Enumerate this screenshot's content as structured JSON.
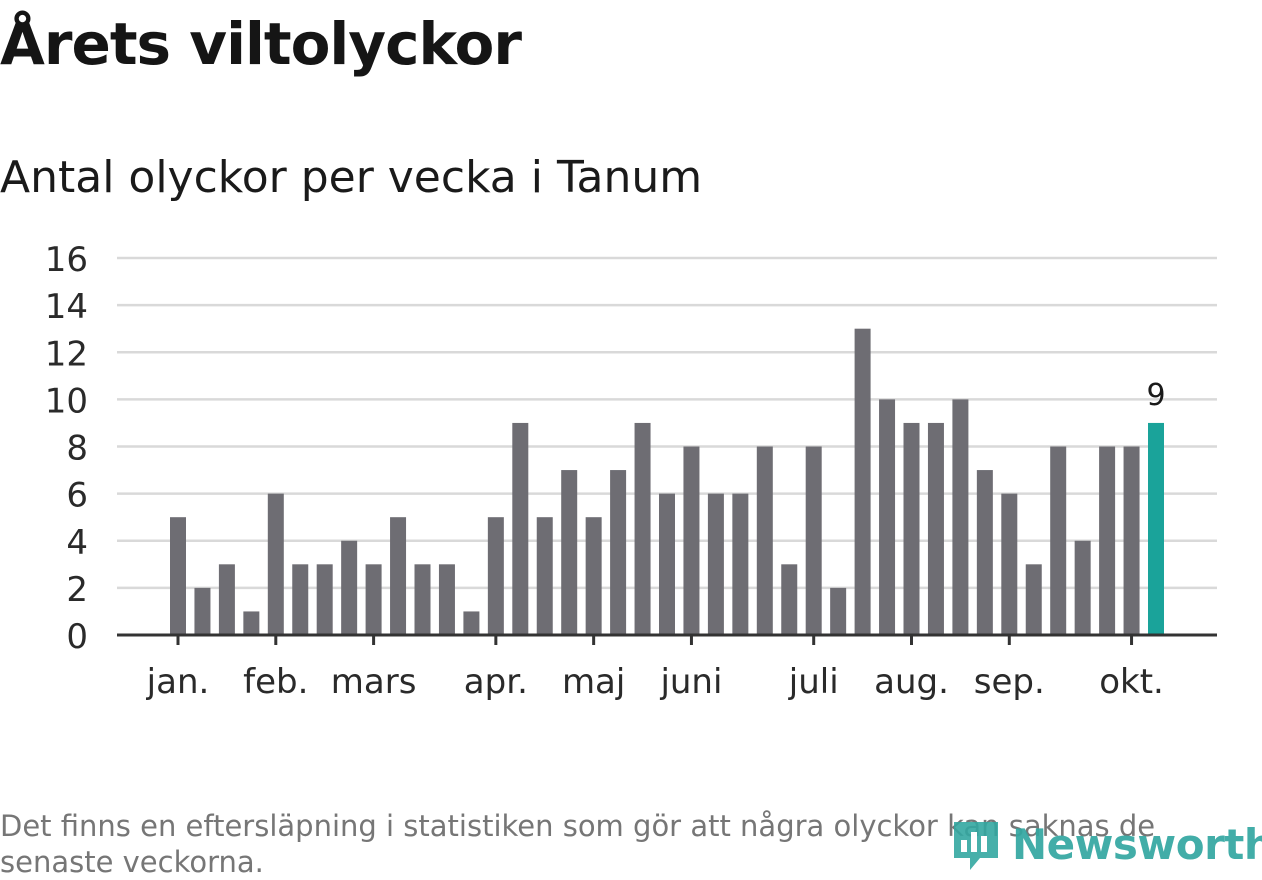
{
  "title": "Årets viltolyckor",
  "subtitle": "Antal olyckor per vecka i Tanum",
  "footnote": "Det finns en eftersläpning i statistiken som gör att några olyckor kan saknas de senaste veckorna.",
  "brand": {
    "name": "Newsworthy",
    "color": "#33a7a1",
    "icon": "newsworthy-logo-icon"
  },
  "colors": {
    "bar": "#6e6d73",
    "highlight": "#1aa39a",
    "grid": "#d9d9d9",
    "axis": "#333333"
  },
  "chart_data": {
    "type": "bar",
    "title": "Antal olyckor per vecka i Tanum",
    "xlabel": "",
    "ylabel": "",
    "ylim": [
      0,
      16
    ],
    "yticks": [
      0,
      2,
      4,
      6,
      8,
      10,
      12,
      14,
      16
    ],
    "grid": true,
    "values": [
      5,
      2,
      3,
      1,
      6,
      3,
      3,
      4,
      3,
      5,
      3,
      3,
      1,
      5,
      9,
      5,
      7,
      5,
      7,
      9,
      6,
      8,
      6,
      6,
      8,
      3,
      8,
      2,
      13,
      10,
      9,
      9,
      10,
      7,
      6,
      3,
      8,
      4,
      8,
      8,
      9
    ],
    "highlight_index": 40,
    "highlight_label": "9",
    "month_ticks": [
      {
        "label": "jan.",
        "week_index": 0
      },
      {
        "label": "feb.",
        "week_index": 4
      },
      {
        "label": "mars",
        "week_index": 8
      },
      {
        "label": "apr.",
        "week_index": 13
      },
      {
        "label": "maj",
        "week_index": 17
      },
      {
        "label": "juni",
        "week_index": 21
      },
      {
        "label": "juli",
        "week_index": 26
      },
      {
        "label": "aug.",
        "week_index": 30
      },
      {
        "label": "sep.",
        "week_index": 34
      },
      {
        "label": "okt.",
        "week_index": 39
      }
    ]
  }
}
